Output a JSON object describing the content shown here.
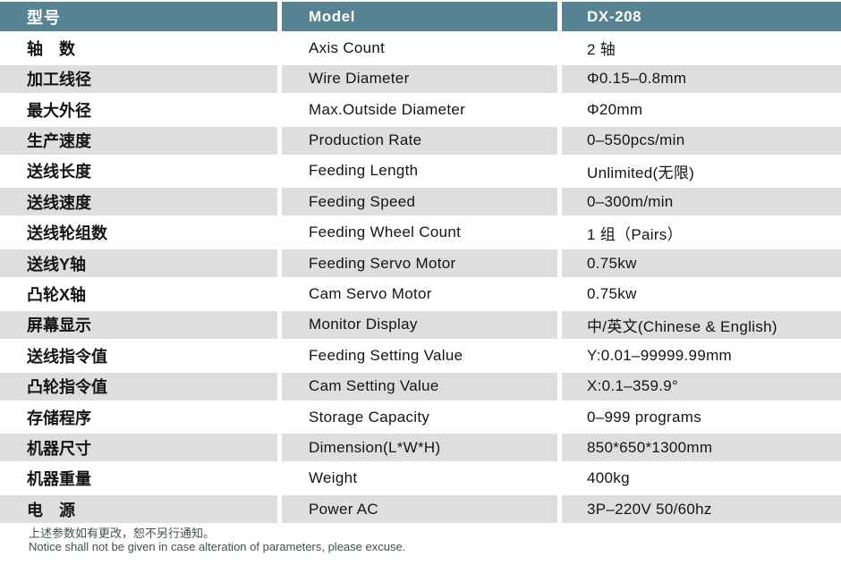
{
  "colors": {
    "header_bg": "#568291",
    "row_alt_bg": "#dedede",
    "row_bg": "#ffffff",
    "header_text": "#ffffff",
    "body_text": "#141414",
    "footer_text": "#41514f"
  },
  "header": {
    "col_cn": "型号",
    "col_en": "Model",
    "col_value": "DX-208"
  },
  "rows": [
    {
      "cn": "轴　数",
      "en": "Axis Count",
      "value": "2 轴"
    },
    {
      "cn": "加工线径",
      "en": "Wire Diameter",
      "value": "Φ0.15–0.8mm"
    },
    {
      "cn": "最大外径",
      "en": "Max.Outside Diameter",
      "value": "Φ20mm"
    },
    {
      "cn": "生产速度",
      "en": "Production Rate",
      "value": "0–550pcs/min"
    },
    {
      "cn": "送线长度",
      "en": "Feeding Length",
      "value": "Unlimited(无限)"
    },
    {
      "cn": "送线速度",
      "en": "Feeding Speed",
      "value": "0–300m/min"
    },
    {
      "cn": "送线轮组数",
      "en": "Feeding Wheel Count",
      "value": "1 组（Pairs）"
    },
    {
      "cn": "送线Y轴",
      "en": "Feeding Servo Motor",
      "value": "0.75kw"
    },
    {
      "cn": "凸轮X轴",
      "en": "Cam Servo Motor",
      "value": "0.75kw"
    },
    {
      "cn": "屏幕显示",
      "en": "Monitor Display",
      "value": "中/英文(Chinese & English)"
    },
    {
      "cn": "送线指令值",
      "en": "Feeding Setting Value",
      "value": "Y:0.01–99999.99mm"
    },
    {
      "cn": "凸轮指令值",
      "en": "Cam Setting Value",
      "value": "X:0.1–359.9°"
    },
    {
      "cn": "存储程序",
      "en": "Storage Capacity",
      "value": "0–999 programs"
    },
    {
      "cn": "机器尺寸",
      "en": "Dimension(L*W*H)",
      "value": "850*650*1300mm"
    },
    {
      "cn": "机器重量",
      "en": "Weight",
      "value": "400kg"
    },
    {
      "cn": "电　源",
      "en": "Power AC",
      "value": "3P–220V 50/60hz"
    }
  ],
  "footer": {
    "line_cn": "上述参数如有更改，恕不另行通知。",
    "line_en": "Notice shall not be given in case alteration of parameters, please excuse."
  }
}
